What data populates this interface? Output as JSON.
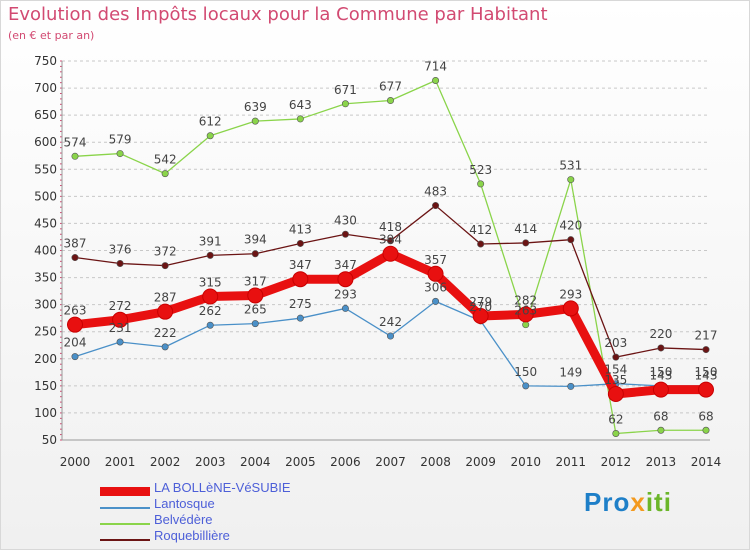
{
  "title": "Evolution des Impôts locaux pour la Commune par Habitant",
  "subtitle": "(en € et par an)",
  "brand": {
    "p1": "Pro",
    "p2": "x",
    "p3": "iti"
  },
  "chart_data": {
    "type": "line",
    "x": [
      "2000",
      "2001",
      "2002",
      "2003",
      "2004",
      "2005",
      "2006",
      "2007",
      "2008",
      "2009",
      "2010",
      "2011",
      "2012",
      "2013",
      "2014"
    ],
    "ylim": [
      50,
      750
    ],
    "yticks": [
      50,
      100,
      150,
      200,
      250,
      300,
      350,
      400,
      450,
      500,
      550,
      600,
      650,
      700,
      750
    ],
    "grid": "horizontal dashed",
    "legend": "bottom-left",
    "series": [
      {
        "name": "LA BOLLèNE-VéSUBIE",
        "color": "#e81010",
        "values": [
          263,
          272,
          287,
          315,
          317,
          347,
          347,
          394,
          357,
          279,
          282,
          293,
          135,
          143,
          143
        ],
        "labels": [
          "263",
          "272",
          "287",
          "315",
          "317",
          "347",
          "347",
          "394",
          "357",
          "279",
          "282",
          "293",
          "135",
          "143",
          "143"
        ]
      },
      {
        "name": "Lantosque",
        "color": "#4a90c8",
        "values": [
          204,
          231,
          222,
          262,
          265,
          275,
          293,
          242,
          306,
          270,
          150,
          149,
          154,
          150,
          150
        ],
        "labels": [
          "204",
          "231",
          "222",
          "262",
          "265",
          "275",
          "293",
          "242",
          "306",
          "270",
          "150",
          "149",
          "154",
          "150",
          "150"
        ]
      },
      {
        "name": "Belvédère",
        "color": "#8ad44a",
        "values": [
          574,
          579,
          542,
          612,
          639,
          643,
          671,
          677,
          714,
          523,
          263,
          531,
          62,
          68,
          68
        ],
        "labels": [
          "574",
          "579",
          "542",
          "612",
          "639",
          "643",
          "671",
          "677",
          "714",
          "523",
          "263",
          "531",
          "62",
          "68",
          "68"
        ]
      },
      {
        "name": "Roquebillière",
        "color": "#6b1414",
        "values": [
          387,
          376,
          372,
          391,
          394,
          413,
          430,
          418,
          483,
          412,
          414,
          420,
          203,
          220,
          217
        ],
        "labels": [
          "387",
          "376",
          "372",
          "391",
          "394",
          "413",
          "430",
          "418",
          "483",
          "412",
          "414",
          "420",
          "203",
          "220",
          "217"
        ]
      }
    ]
  }
}
